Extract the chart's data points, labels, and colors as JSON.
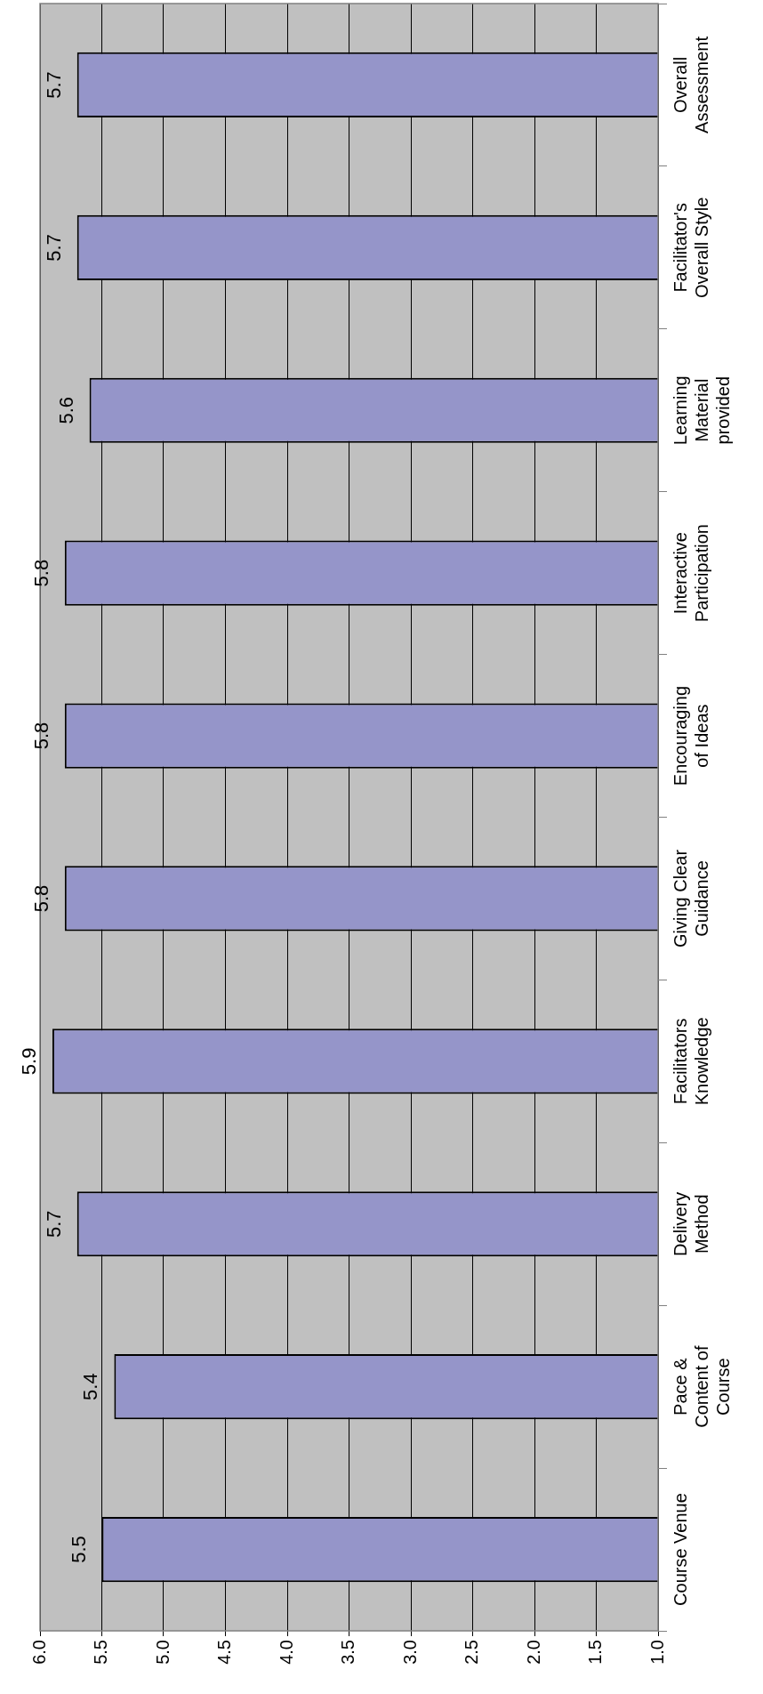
{
  "chart_data": {
    "type": "bar",
    "orientation": "horizontal",
    "categories": [
      "Overall Assessment",
      "Facilitator's Overall Style",
      "Learning Material provided",
      "Interactive Participation",
      "Encouraging of Ideas",
      "Giving Clear Guidance",
      "Facilitators Knowledge",
      "Delivery Method",
      "Pace & Content of Course",
      "Course Venue"
    ],
    "values": [
      5.7,
      5.7,
      5.6,
      5.8,
      5.8,
      5.8,
      5.9,
      5.7,
      5.4,
      5.5
    ],
    "color": "#9595c9",
    "xlim": [
      6,
      1
    ],
    "xticks": [
      {
        "value": 6,
        "label": "6.0"
      },
      {
        "value": 5.5,
        "label": "5.5"
      },
      {
        "value": 5,
        "label": "5.0"
      },
      {
        "value": 4.5,
        "label": "4.5"
      },
      {
        "value": 4,
        "label": "4.0"
      },
      {
        "value": 3.5,
        "label": "3.5"
      },
      {
        "value": 3,
        "label": "3.0"
      },
      {
        "value": 2.5,
        "label": "2.5"
      },
      {
        "value": 2,
        "label": "2.0"
      },
      {
        "value": 1.5,
        "label": "1.5"
      },
      {
        "value": 1,
        "label": "1.0"
      }
    ],
    "grid": "x",
    "data_labels": true
  }
}
